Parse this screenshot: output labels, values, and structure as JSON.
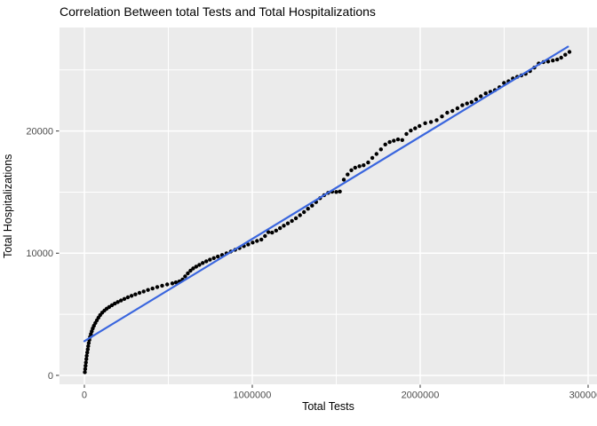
{
  "chart_data": {
    "type": "scatter",
    "title": "Correlation Between total Tests and Total Hospitalizations",
    "xlabel": "Total Tests",
    "ylabel": "Total Hospitalizations",
    "x_tick_values": [
      0,
      1000000,
      2000000,
      3000000
    ],
    "x_tick_labels": [
      "0",
      "1000000",
      "2000000",
      "3000000"
    ],
    "y_tick_values": [
      0,
      10000,
      20000
    ],
    "y_tick_labels": [
      "0",
      "10000",
      "20000"
    ],
    "x_minor_values": [
      500000,
      1500000,
      2500000
    ],
    "y_minor_values": [
      5000,
      15000,
      25000
    ],
    "xlim": [
      -148000,
      3053000
    ],
    "ylim": [
      -730,
      28470
    ],
    "grid": "major+minor",
    "legend": false,
    "theme": {
      "panel_bg": "#EBEBEB",
      "grid_color": "#FFFFFF",
      "point_color": "#000000",
      "trend_color": "#3A66DE",
      "tick_label_color": "#4D4D4D",
      "tick_mark_color": "#333333",
      "text_color": "#000000"
    },
    "trend_line": {
      "shape": "linear",
      "x1": 0,
      "y1": 2800,
      "x2": 2880000,
      "y2": 26900
    },
    "points": [
      [
        3000,
        260
      ],
      [
        5000,
        520
      ],
      [
        7000,
        790
      ],
      [
        9000,
        1060
      ],
      [
        12000,
        1330
      ],
      [
        14000,
        1600
      ],
      [
        17000,
        1870
      ],
      [
        20000,
        2130
      ],
      [
        23000,
        2390
      ],
      [
        26000,
        2650
      ],
      [
        30000,
        2900
      ],
      [
        34000,
        3140
      ],
      [
        39000,
        3380
      ],
      [
        44000,
        3610
      ],
      [
        50000,
        3840
      ],
      [
        57000,
        4060
      ],
      [
        65000,
        4280
      ],
      [
        74000,
        4500
      ],
      [
        84000,
        4720
      ],
      [
        94000,
        4930
      ],
      [
        106000,
        5130
      ],
      [
        119000,
        5300
      ],
      [
        133000,
        5460
      ],
      [
        148000,
        5600
      ],
      [
        164000,
        5740
      ],
      [
        181000,
        5870
      ],
      [
        199000,
        6000
      ],
      [
        218000,
        6130
      ],
      [
        238000,
        6260
      ],
      [
        259000,
        6390
      ],
      [
        281000,
        6510
      ],
      [
        304000,
        6630
      ],
      [
        328000,
        6750
      ],
      [
        353000,
        6870
      ],
      [
        379000,
        6990
      ],
      [
        406000,
        7110
      ],
      [
        434000,
        7230
      ],
      [
        463000,
        7340
      ],
      [
        493000,
        7440
      ],
      [
        524000,
        7530
      ],
      [
        545000,
        7610
      ],
      [
        566000,
        7690
      ],
      [
        585000,
        7850
      ],
      [
        600000,
        8100
      ],
      [
        616000,
        8350
      ],
      [
        632000,
        8570
      ],
      [
        648000,
        8750
      ],
      [
        666000,
        8900
      ],
      [
        685000,
        9050
      ],
      [
        705000,
        9200
      ],
      [
        726000,
        9340
      ],
      [
        748000,
        9470
      ],
      [
        771000,
        9600
      ],
      [
        795000,
        9720
      ],
      [
        820000,
        9850
      ],
      [
        846000,
        9990
      ],
      [
        872000,
        10130
      ],
      [
        898000,
        10280
      ],
      [
        924000,
        10420
      ],
      [
        950000,
        10580
      ],
      [
        976000,
        10720
      ],
      [
        1002000,
        10870
      ],
      [
        1028000,
        11000
      ],
      [
        1054000,
        11120
      ],
      [
        1076000,
        11400
      ],
      [
        1096000,
        11720
      ],
      [
        1118000,
        11680
      ],
      [
        1142000,
        11850
      ],
      [
        1165000,
        12050
      ],
      [
        1188000,
        12250
      ],
      [
        1212000,
        12440
      ],
      [
        1236000,
        12640
      ],
      [
        1260000,
        12860
      ],
      [
        1284000,
        13110
      ],
      [
        1308000,
        13360
      ],
      [
        1332000,
        13640
      ],
      [
        1356000,
        13890
      ],
      [
        1380000,
        14180
      ],
      [
        1404000,
        14500
      ],
      [
        1428000,
        14750
      ],
      [
        1452000,
        14940
      ],
      [
        1476000,
        15030
      ],
      [
        1500000,
        15010
      ],
      [
        1522000,
        15050
      ],
      [
        1545000,
        16020
      ],
      [
        1568000,
        16440
      ],
      [
        1590000,
        16790
      ],
      [
        1613000,
        17000
      ],
      [
        1638000,
        17120
      ],
      [
        1663000,
        17200
      ],
      [
        1690000,
        17420
      ],
      [
        1715000,
        17800
      ],
      [
        1740000,
        18120
      ],
      [
        1766000,
        18500
      ],
      [
        1792000,
        18900
      ],
      [
        1818000,
        19090
      ],
      [
        1843000,
        19200
      ],
      [
        1868000,
        19310
      ],
      [
        1893000,
        19260
      ],
      [
        1918000,
        19760
      ],
      [
        1944000,
        20040
      ],
      [
        1970000,
        20220
      ],
      [
        1996000,
        20410
      ],
      [
        2030000,
        20640
      ],
      [
        2064000,
        20740
      ],
      [
        2098000,
        20890
      ],
      [
        2130000,
        21190
      ],
      [
        2161000,
        21500
      ],
      [
        2192000,
        21640
      ],
      [
        2222000,
        21860
      ],
      [
        2251000,
        22110
      ],
      [
        2279000,
        22250
      ],
      [
        2306000,
        22370
      ],
      [
        2333000,
        22590
      ],
      [
        2361000,
        22840
      ],
      [
        2390000,
        23080
      ],
      [
        2418000,
        23210
      ],
      [
        2445000,
        23340
      ],
      [
        2472000,
        23580
      ],
      [
        2499000,
        23930
      ],
      [
        2526000,
        24070
      ],
      [
        2552000,
        24300
      ],
      [
        2578000,
        24430
      ],
      [
        2603000,
        24550
      ],
      [
        2628000,
        24680
      ],
      [
        2654000,
        24900
      ],
      [
        2680000,
        25190
      ],
      [
        2706000,
        25520
      ],
      [
        2734000,
        25640
      ],
      [
        2762000,
        25690
      ],
      [
        2790000,
        25770
      ],
      [
        2816000,
        25850
      ],
      [
        2840000,
        26000
      ],
      [
        2864000,
        26240
      ],
      [
        2889000,
        26470
      ]
    ]
  }
}
